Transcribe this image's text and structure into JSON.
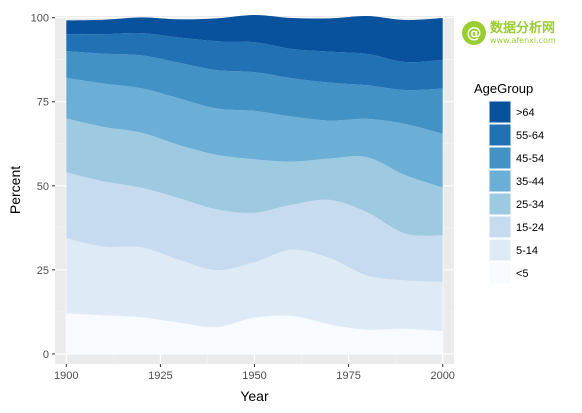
{
  "watermark": {
    "symbol": "@",
    "name": "数据分析网",
    "url": "www.afenxi.com"
  },
  "colors": {
    "panel_bg": "#ebebeb",
    "grid_major": "#ffffff",
    "grid_minor": "#f5f5f5",
    "logo": "#9acd32"
  },
  "chart_data": {
    "type": "area",
    "stacked": true,
    "xlabel": "Year",
    "ylabel": "Percent",
    "xlim": [
      1897,
      2003
    ],
    "ylim": [
      -3,
      100.5
    ],
    "xticks": [
      1900,
      1925,
      1950,
      1975,
      2000
    ],
    "xtick_labels": [
      "1900",
      "1925",
      "1950",
      "1975",
      "2000"
    ],
    "yticks": [
      0,
      25,
      50,
      75,
      100
    ],
    "ytick_labels": [
      "0",
      "25",
      "50",
      "75",
      "100"
    ],
    "grid": true,
    "legend": {
      "title": "AgeGroup",
      "position": "right"
    },
    "x": [
      1900,
      1910,
      1920,
      1930,
      1940,
      1950,
      1960,
      1970,
      1980,
      1990,
      2000
    ],
    "series": [
      {
        "name": "<5",
        "color": "#f7fbff",
        "values": [
          12.1,
          11.5,
          10.9,
          9.3,
          8.0,
          10.8,
          11.3,
          8.8,
          7.2,
          7.5,
          6.8
        ]
      },
      {
        "name": "5-14",
        "color": "#deebf7",
        "values": [
          22.3,
          20.4,
          20.8,
          18.7,
          16.9,
          16.5,
          19.7,
          19.7,
          16.1,
          14.4,
          14.6
        ]
      },
      {
        "name": "15-24",
        "color": "#c6dbef",
        "values": [
          19.6,
          19.4,
          17.7,
          18.3,
          18.1,
          14.7,
          13.4,
          17.3,
          18.8,
          13.9,
          13.9
        ]
      },
      {
        "name": "25-34",
        "color": "#9ecae1",
        "values": [
          16.0,
          16.2,
          16.4,
          15.8,
          16.2,
          15.9,
          12.8,
          12.3,
          16.4,
          17.4,
          14.2
        ]
      },
      {
        "name": "35-44",
        "color": "#6baed6",
        "values": [
          12.1,
          12.9,
          13.2,
          13.9,
          13.8,
          14.4,
          13.4,
          11.3,
          11.4,
          15.2,
          16.0
        ]
      },
      {
        "name": "45-54",
        "color": "#4292c6",
        "values": [
          8.0,
          8.9,
          9.8,
          10.6,
          11.4,
          11.5,
          11.4,
          11.3,
          10.0,
          10.1,
          13.4
        ]
      },
      {
        "name": "55-64",
        "color": "#2171b5",
        "values": [
          5.0,
          5.8,
          6.6,
          7.5,
          8.6,
          8.9,
          8.7,
          9.2,
          9.3,
          8.3,
          8.6
        ]
      },
      {
        "name": ">64",
        "color": "#08519c",
        "values": [
          4.1,
          4.3,
          4.7,
          5.4,
          6.8,
          8.1,
          9.2,
          9.9,
          11.3,
          12.5,
          12.4
        ]
      }
    ]
  }
}
